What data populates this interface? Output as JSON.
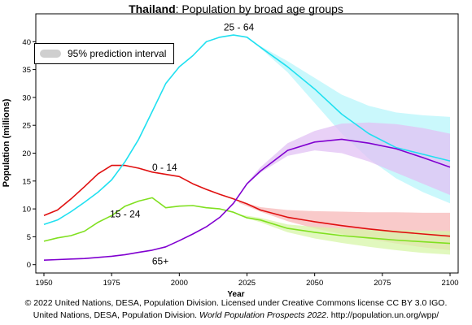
{
  "header": {
    "country": "Thailand",
    "subtitle": ": Population by broad age groups"
  },
  "footer": {
    "line1": "© 2022 United Nations, DESA, Population Division. Licensed under Creative Commons license CC BY 3.0 IGO.",
    "line2_prefix": "United Nations, DESA, Population Division. ",
    "line2_italic": "World Population Prospects 2022",
    "line2_suffix": ". http://population.un.org/wpp/"
  },
  "chart_data": {
    "type": "line",
    "title": "Thailand: Population by broad age groups",
    "xlabel": "Year",
    "ylabel": "Population (millions)",
    "xlim": [
      1947,
      2103
    ],
    "ylim": [
      -1.5,
      45
    ],
    "x_ticks": [
      1950,
      1975,
      2000,
      2025,
      2050,
      2075,
      2100
    ],
    "y_ticks": [
      0,
      5,
      10,
      15,
      20,
      25,
      30,
      35,
      40
    ],
    "legend": {
      "position": "top-left",
      "label": "95% prediction interval",
      "color": "#cccccc"
    },
    "series": [
      {
        "name": "0 - 14",
        "color": "#e01010",
        "band_color": "#f7b8b8",
        "x": [
          1950,
          1955,
          1960,
          1965,
          1970,
          1975,
          1980,
          1985,
          1990,
          1995,
          2000,
          2005,
          2010,
          2015,
          2020,
          2025,
          2030,
          2040,
          2050,
          2060,
          2070,
          2080,
          2090,
          2100
        ],
        "y": [
          8.8,
          9.8,
          11.8,
          14.0,
          16.3,
          17.8,
          17.8,
          17.3,
          16.6,
          16.2,
          15.8,
          14.5,
          13.5,
          12.6,
          11.8,
          10.9,
          9.8,
          8.5,
          7.7,
          7.0,
          6.4,
          5.9,
          5.5,
          5.1
        ],
        "band_x": [
          2022,
          2030,
          2040,
          2050,
          2060,
          2070,
          2080,
          2090,
          2100
        ],
        "band_lower": [
          11.1,
          9.5,
          7.8,
          6.5,
          5.5,
          4.6,
          3.8,
          3.1,
          2.6
        ],
        "band_upper": [
          11.4,
          10.3,
          9.8,
          9.6,
          9.5,
          9.4,
          9.4,
          9.3,
          9.3
        ]
      },
      {
        "name": "15 - 24",
        "color": "#80e020",
        "band_color": "#d7f5a8",
        "x": [
          1950,
          1955,
          1960,
          1965,
          1970,
          1975,
          1980,
          1985,
          1990,
          1995,
          2000,
          2005,
          2010,
          2015,
          2020,
          2025,
          2030,
          2040,
          2050,
          2060,
          2070,
          2080,
          2090,
          2100
        ],
        "y": [
          4.2,
          4.8,
          5.2,
          6.0,
          7.6,
          8.8,
          10.5,
          11.4,
          12.0,
          10.2,
          10.5,
          10.6,
          10.2,
          10.0,
          9.4,
          8.4,
          8.0,
          6.5,
          5.8,
          5.2,
          4.8,
          4.4,
          4.1,
          3.8
        ],
        "band_x": [
          2022,
          2030,
          2040,
          2050,
          2060,
          2070,
          2080,
          2090,
          2100
        ],
        "band_lower": [
          8.8,
          7.6,
          5.8,
          4.7,
          3.9,
          3.2,
          2.6,
          2.1,
          1.8
        ],
        "band_upper": [
          9.0,
          8.4,
          7.2,
          6.8,
          6.5,
          6.3,
          6.2,
          6.1,
          6.0
        ]
      },
      {
        "name": "25 - 64",
        "color": "#20e0f0",
        "band_color": "#b8f6fb",
        "x": [
          1950,
          1955,
          1960,
          1965,
          1970,
          1975,
          1980,
          1985,
          1990,
          1995,
          2000,
          2005,
          2010,
          2015,
          2020,
          2025,
          2030,
          2040,
          2050,
          2060,
          2070,
          2080,
          2090,
          2100
        ],
        "y": [
          7.2,
          8.0,
          9.5,
          11.2,
          13.0,
          15.2,
          18.5,
          22.5,
          27.5,
          32.5,
          35.5,
          37.5,
          40.0,
          40.8,
          41.2,
          40.8,
          39.0,
          35.5,
          31.5,
          27.0,
          23.5,
          21.0,
          19.8,
          18.6
        ],
        "band_x": [
          2030,
          2040,
          2050,
          2060,
          2070,
          2080,
          2090,
          2100
        ],
        "band_lower": [
          38.8,
          34.5,
          29.0,
          23.5,
          19.0,
          15.5,
          13.0,
          11.0
        ],
        "band_upper": [
          39.2,
          36.5,
          33.5,
          30.5,
          28.5,
          27.3,
          26.8,
          26.5
        ]
      },
      {
        "name": "65+",
        "color": "#8000d0",
        "band_color": "#e2c2f4",
        "x": [
          1950,
          1955,
          1960,
          1965,
          1970,
          1975,
          1980,
          1985,
          1990,
          1995,
          2000,
          2005,
          2010,
          2015,
          2020,
          2025,
          2030,
          2040,
          2050,
          2060,
          2070,
          2080,
          2090,
          2100
        ],
        "y": [
          0.8,
          0.9,
          1.0,
          1.1,
          1.3,
          1.5,
          1.8,
          2.2,
          2.6,
          3.2,
          4.3,
          5.5,
          6.8,
          8.5,
          11.0,
          14.5,
          16.8,
          20.5,
          22.0,
          22.5,
          21.8,
          20.8,
          19.2,
          17.5
        ],
        "band_x": [
          2025,
          2030,
          2040,
          2050,
          2060,
          2070,
          2080,
          2090,
          2100
        ],
        "band_lower": [
          14.5,
          16.5,
          19.5,
          20.5,
          20.0,
          18.5,
          16.5,
          14.5,
          12.5
        ],
        "band_upper": [
          14.7,
          17.5,
          21.8,
          24.0,
          25.3,
          25.5,
          25.2,
          24.5,
          23.5
        ]
      }
    ]
  }
}
